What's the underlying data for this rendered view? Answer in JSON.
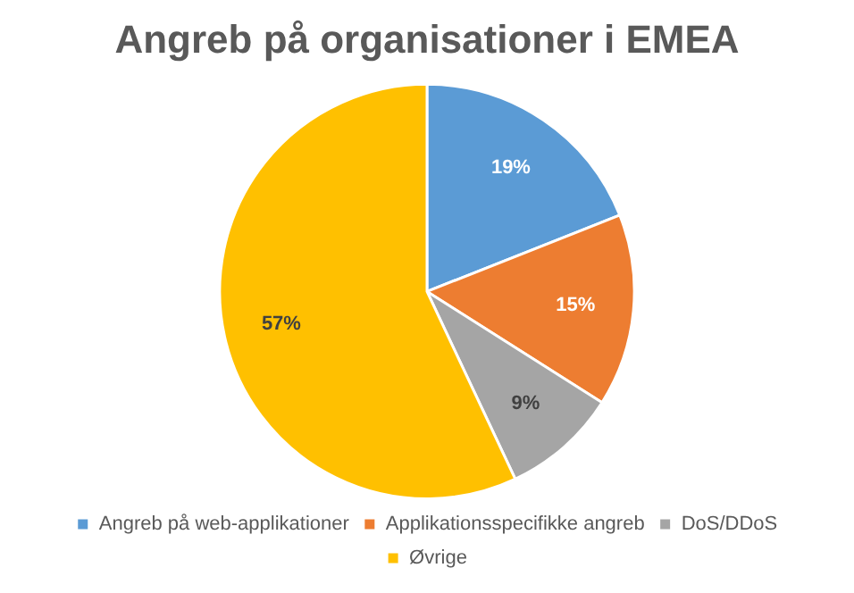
{
  "chart_data": {
    "type": "pie",
    "title": "Angreb på organisationer i EMEA",
    "categories": [
      "Angreb på web-applikationer",
      "Applikationsspecifikke angreb",
      "DoS/DDoS",
      "Øvrige"
    ],
    "values": [
      19,
      15,
      9,
      57
    ],
    "colors": [
      "#5b9bd5",
      "#ed7d31",
      "#a5a5a5",
      "#ffc000"
    ],
    "value_labels": [
      "19%",
      "15%",
      "9%",
      "57%"
    ],
    "legend": "bottom"
  }
}
